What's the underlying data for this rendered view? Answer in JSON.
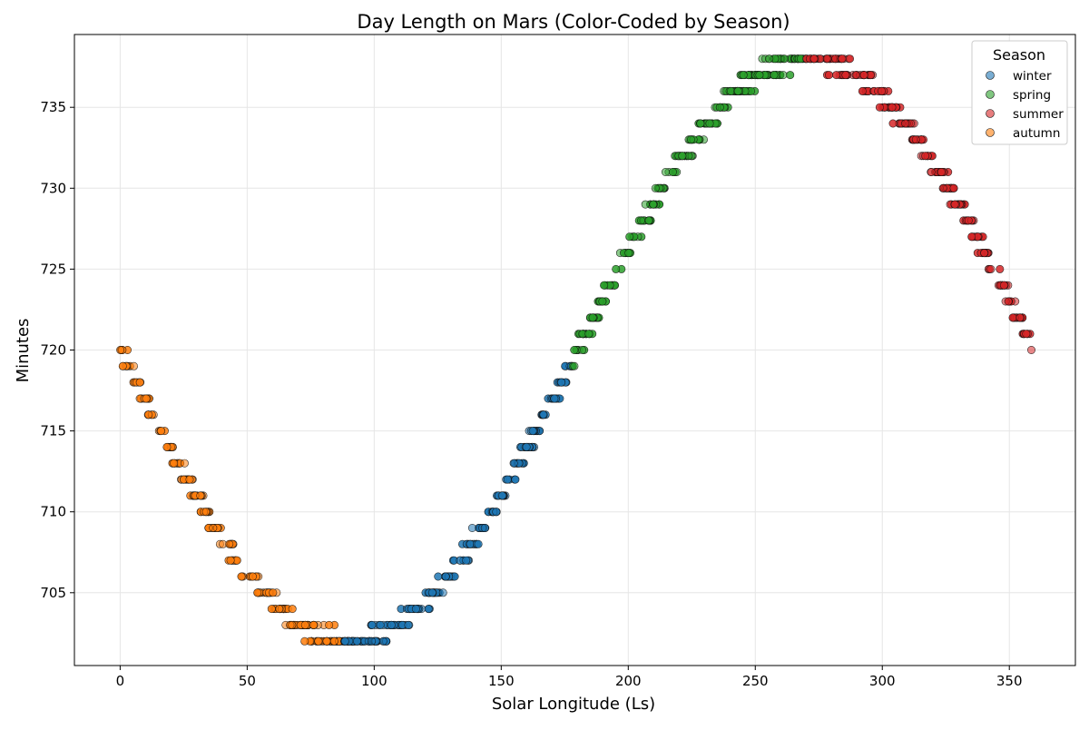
{
  "chart_data": {
    "type": "scatter",
    "title": "Day Length on Mars (Color-Coded by Season)",
    "xlabel": "Solar Longitude (Ls)",
    "ylabel": "Minutes",
    "xlim": [
      -18,
      376
    ],
    "ylim": [
      700.5,
      739.5
    ],
    "x_ticks": [
      0,
      50,
      100,
      150,
      200,
      250,
      300,
      350
    ],
    "y_ticks": [
      705,
      710,
      715,
      720,
      725,
      730,
      735
    ],
    "grid": true,
    "legend": {
      "title": "Season",
      "placement": "top-right"
    },
    "series": [
      {
        "name": "winter",
        "color": "#1f77b4",
        "x_range": [
          88,
          178
        ],
        "model": "sine",
        "approx_points": 270
      },
      {
        "name": "spring",
        "color": "#2ca02c",
        "x_range": [
          178,
          270
        ],
        "model": "sine",
        "approx_points": 270
      },
      {
        "name": "summer",
        "color": "#d62728",
        "x_range": [
          270,
          359
        ],
        "model": "sine",
        "approx_points": 270
      },
      {
        "name": "autumn",
        "color": "#ff7f0e",
        "x_range": [
          0,
          92
        ],
        "model": "sine",
        "approx_points": 270
      }
    ],
    "curve": {
      "mean": 720,
      "amplitude": 18,
      "period": 360,
      "min_at": 90,
      "rounding": "integer"
    }
  }
}
